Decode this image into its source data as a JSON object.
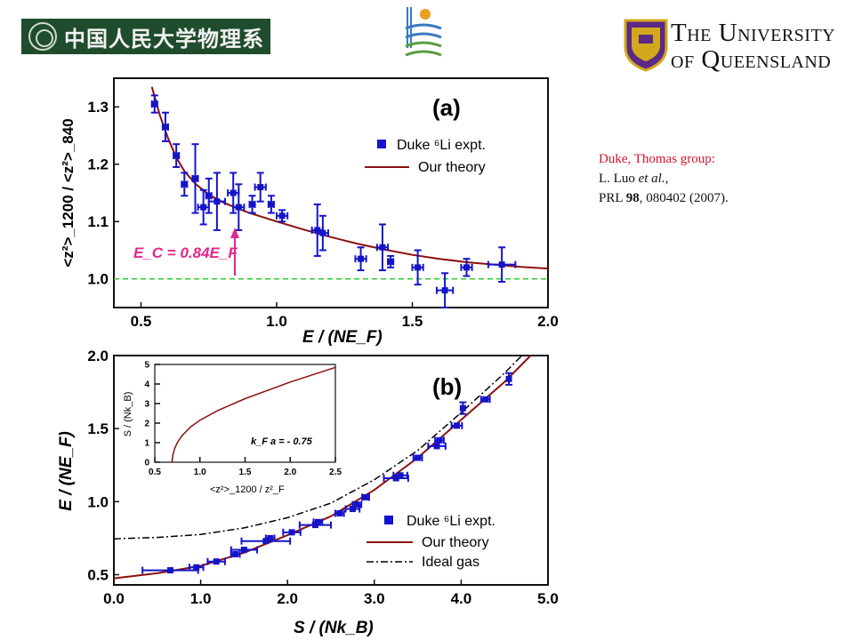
{
  "logos": {
    "left_text": "中国人民大学物理系",
    "right_line1": "The University",
    "right_line2": "of Queensland"
  },
  "citation": {
    "line1": "Duke, Thomas group:",
    "line2_prefix": "L. Luo ",
    "line2_italic": "et al.",
    "line2_suffix": ",",
    "line3_prefix": "PRL ",
    "line3_bold": "98",
    "line3_suffix": ", 080402 (2007)."
  },
  "chart_data": [
    {
      "panel_label": "(a)",
      "type": "scatter",
      "xlabel": "E / (NE_F)",
      "ylabel": "<z²>_1200 / <z²>_840",
      "xlim": [
        0.4,
        2.0
      ],
      "ylim": [
        0.95,
        1.35
      ],
      "xticks": [
        "0.5",
        "1.0",
        "1.5",
        "2.0"
      ],
      "yticks": [
        "1.0",
        "1.1",
        "1.2",
        "1.3"
      ],
      "legend_position": "upper-right",
      "colors": {
        "data": "#1414c8",
        "theory": "#8b1010",
        "reference": "#33cc33",
        "arrow": "#e0288c"
      },
      "series": [
        {
          "name": "Duke ⁶Li expt.",
          "kind": "points-with-errorbars",
          "points": [
            {
              "x": 0.55,
              "y": 1.305,
              "xerr": 0.01,
              "yerr": 0.015
            },
            {
              "x": 0.59,
              "y": 1.265,
              "xerr": 0.01,
              "yerr": 0.025
            },
            {
              "x": 0.63,
              "y": 1.215,
              "xerr": 0.01,
              "yerr": 0.02
            },
            {
              "x": 0.66,
              "y": 1.165,
              "xerr": 0.01,
              "yerr": 0.02
            },
            {
              "x": 0.7,
              "y": 1.175,
              "xerr": 0.01,
              "yerr": 0.06
            },
            {
              "x": 0.73,
              "y": 1.125,
              "xerr": 0.02,
              "yerr": 0.03
            },
            {
              "x": 0.75,
              "y": 1.145,
              "xerr": 0.01,
              "yerr": 0.03
            },
            {
              "x": 0.78,
              "y": 1.135,
              "xerr": 0.03,
              "yerr": 0.05
            },
            {
              "x": 0.84,
              "y": 1.15,
              "xerr": 0.02,
              "yerr": 0.035
            },
            {
              "x": 0.86,
              "y": 1.125,
              "xerr": 0.02,
              "yerr": 0.04
            },
            {
              "x": 0.91,
              "y": 1.13,
              "xerr": 0.01,
              "yerr": 0.015
            },
            {
              "x": 0.94,
              "y": 1.16,
              "xerr": 0.02,
              "yerr": 0.025
            },
            {
              "x": 0.98,
              "y": 1.13,
              "xerr": 0.01,
              "yerr": 0.015
            },
            {
              "x": 1.02,
              "y": 1.11,
              "xerr": 0.02,
              "yerr": 0.01
            },
            {
              "x": 1.15,
              "y": 1.085,
              "xerr": 0.02,
              "yerr": 0.045
            },
            {
              "x": 1.17,
              "y": 1.08,
              "xerr": 0.02,
              "yerr": 0.03
            },
            {
              "x": 1.31,
              "y": 1.035,
              "xerr": 0.02,
              "yerr": 0.02
            },
            {
              "x": 1.39,
              "y": 1.055,
              "xerr": 0.02,
              "yerr": 0.04
            },
            {
              "x": 1.42,
              "y": 1.03,
              "xerr": 0.01,
              "yerr": 0.01
            },
            {
              "x": 1.52,
              "y": 1.02,
              "xerr": 0.02,
              "yerr": 0.03
            },
            {
              "x": 1.62,
              "y": 0.98,
              "xerr": 0.03,
              "yerr": 0.03
            },
            {
              "x": 1.7,
              "y": 1.02,
              "xerr": 0.02,
              "yerr": 0.015
            },
            {
              "x": 1.83,
              "y": 1.025,
              "xerr": 0.05,
              "yerr": 0.03
            }
          ]
        },
        {
          "name": "Our theory",
          "kind": "curve",
          "x": [
            0.54,
            0.57,
            0.6,
            0.63,
            0.66,
            0.7,
            0.75,
            0.8,
            0.85,
            0.9,
            1.0,
            1.1,
            1.2,
            1.3,
            1.4,
            1.5,
            1.6,
            1.7,
            1.8,
            1.9,
            2.0
          ],
          "y": [
            1.335,
            1.285,
            1.245,
            1.212,
            1.188,
            1.166,
            1.147,
            1.134,
            1.124,
            1.115,
            1.1,
            1.086,
            1.073,
            1.061,
            1.051,
            1.042,
            1.035,
            1.029,
            1.025,
            1.021,
            1.018
          ]
        },
        {
          "kind": "reference-line",
          "y": 1.0
        }
      ],
      "annotation": {
        "text": "E_C = 0.84E_F",
        "x": 0.84
      }
    },
    {
      "panel_label": "(b)",
      "type": "scatter",
      "xlabel": "S / (Nk_B)",
      "ylabel": "E / (NE_F)",
      "xlim": [
        0.0,
        5.0
      ],
      "ylim": [
        0.43,
        2.0
      ],
      "xticks": [
        "0.0",
        "1.0",
        "2.0",
        "3.0",
        "4.0",
        "5.0"
      ],
      "yticks": [
        "0.5",
        "1.0",
        "1.5",
        "2.0"
      ],
      "legend_position": "lower-right",
      "colors": {
        "data": "#1414c8",
        "theory": "#8b1010",
        "ideal": "#000000"
      },
      "series": [
        {
          "name": "Duke ⁶Li expt.",
          "kind": "points-with-errorbars",
          "points": [
            {
              "x": 0.65,
              "y": 0.53,
              "xerr": 0.32
            },
            {
              "x": 0.95,
              "y": 0.55,
              "xerr": 0.08
            },
            {
              "x": 1.18,
              "y": 0.59,
              "xerr": 0.1
            },
            {
              "x": 1.4,
              "y": 0.64,
              "xerr": 0.05
            },
            {
              "x": 1.5,
              "y": 0.67,
              "xerr": 0.15
            },
            {
              "x": 1.75,
              "y": 0.73,
              "xerr": 0.28
            },
            {
              "x": 1.8,
              "y": 0.75,
              "xerr": 0.05
            },
            {
              "x": 2.05,
              "y": 0.79,
              "xerr": 0.1
            },
            {
              "x": 2.32,
              "y": 0.84,
              "xerr": 0.18
            },
            {
              "x": 2.35,
              "y": 0.86,
              "xerr": 0.05
            },
            {
              "x": 2.6,
              "y": 0.92,
              "xerr": 0.05
            },
            {
              "x": 2.75,
              "y": 0.95,
              "xerr": 0.08
            },
            {
              "x": 2.8,
              "y": 0.98,
              "xerr": 0.05
            },
            {
              "x": 2.9,
              "y": 1.03,
              "xerr": 0.04
            },
            {
              "x": 3.25,
              "y": 1.16,
              "xerr": 0.14
            },
            {
              "x": 3.3,
              "y": 1.18,
              "xerr": 0.08
            },
            {
              "x": 3.5,
              "y": 1.3,
              "xerr": 0.05
            },
            {
              "x": 3.72,
              "y": 1.38,
              "xerr": 0.1
            },
            {
              "x": 3.75,
              "y": 1.42,
              "xerr": 0.05
            },
            {
              "x": 3.95,
              "y": 1.52,
              "xerr": 0.06
            },
            {
              "x": 4.02,
              "y": 1.64,
              "yerr": 0.04
            },
            {
              "x": 4.28,
              "y": 1.7,
              "xerr": 0.05
            },
            {
              "x": 4.55,
              "y": 1.84,
              "yerr": 0.04
            }
          ]
        },
        {
          "name": "Our theory",
          "kind": "curve",
          "x": [
            0.0,
            0.5,
            1.0,
            1.5,
            2.0,
            2.5,
            3.0,
            3.5,
            4.0,
            4.5,
            4.8
          ],
          "y": [
            0.475,
            0.51,
            0.56,
            0.65,
            0.77,
            0.9,
            1.08,
            1.3,
            1.56,
            1.82,
            2.0
          ]
        },
        {
          "name": "Ideal gas",
          "kind": "curve",
          "x": [
            0.0,
            0.5,
            1.0,
            1.5,
            2.0,
            2.5,
            3.0,
            3.5,
            4.0,
            4.5,
            4.7
          ],
          "y": [
            0.745,
            0.755,
            0.775,
            0.82,
            0.89,
            0.99,
            1.15,
            1.35,
            1.61,
            1.88,
            2.0
          ]
        }
      ],
      "inset": {
        "type": "line",
        "xlabel": "<z²>_1200 / z²_F",
        "ylabel": "S / (Nk_B)",
        "xlim": [
          0.5,
          2.5
        ],
        "ylim": [
          0,
          5
        ],
        "xticks": [
          "0.5",
          "1.0",
          "1.5",
          "2.0",
          "2.5"
        ],
        "yticks": [
          "0",
          "1",
          "2",
          "3",
          "4",
          "5"
        ],
        "annotation": "k_F a = - 0.75",
        "curve": {
          "x": [
            0.69,
            0.7,
            0.72,
            0.75,
            0.8,
            0.9,
            1.0,
            1.2,
            1.5,
            2.0,
            2.5
          ],
          "y": [
            0.0,
            0.35,
            0.7,
            1.0,
            1.35,
            1.82,
            2.15,
            2.65,
            3.25,
            4.1,
            4.85
          ]
        }
      }
    }
  ]
}
